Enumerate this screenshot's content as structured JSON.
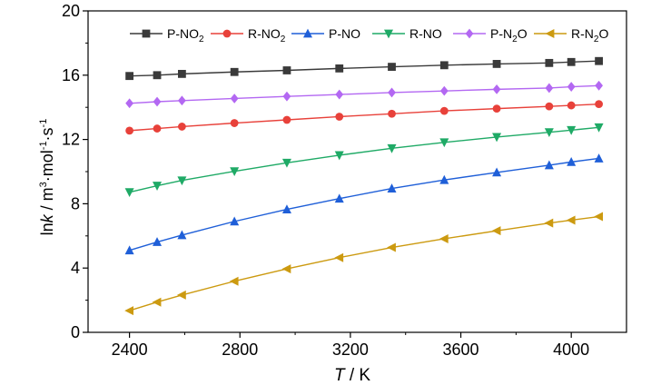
{
  "chart_data": {
    "type": "line",
    "xlabel": {
      "italic": "T",
      "rest": " / K"
    },
    "ylabel": {
      "prefix": "ln",
      "italic": "k",
      "unit": " / m3·mol-1·s-1"
    },
    "xlim": [
      2250,
      4200
    ],
    "ylim": [
      0,
      20
    ],
    "xticks": [
      2400,
      2800,
      3200,
      3600,
      4000
    ],
    "yticks": [
      0,
      4,
      8,
      12,
      16,
      20
    ],
    "x": [
      2400,
      2500,
      2590,
      2780,
      2970,
      3160,
      3350,
      3540,
      3730,
      3920,
      4000,
      4100
    ],
    "grid": false,
    "legend_position": "top",
    "series": [
      {
        "name": "P-NO2",
        "base": "P-NO",
        "sub": "2",
        "color": "#3a3a3a",
        "marker": "square",
        "values": [
          15.95,
          16.0,
          16.08,
          16.2,
          16.3,
          16.42,
          16.52,
          16.62,
          16.7,
          16.76,
          16.82,
          16.88
        ]
      },
      {
        "name": "R-NO2",
        "base": "R-NO",
        "sub": "2",
        "color": "#e8413a",
        "marker": "circle",
        "values": [
          12.55,
          12.68,
          12.8,
          13.02,
          13.22,
          13.42,
          13.6,
          13.78,
          13.92,
          14.06,
          14.12,
          14.2
        ]
      },
      {
        "name": "P-NO",
        "base": "P-NO",
        "sub": "",
        "color": "#1f5fd8",
        "marker": "triangle-up",
        "values": [
          5.1,
          5.62,
          6.05,
          6.9,
          7.65,
          8.32,
          8.95,
          9.48,
          9.95,
          10.4,
          10.6,
          10.82
        ]
      },
      {
        "name": "R-NO",
        "base": "R-NO",
        "sub": "",
        "color": "#1faa66",
        "marker": "triangle-down",
        "values": [
          8.72,
          9.12,
          9.45,
          10.02,
          10.55,
          11.02,
          11.45,
          11.82,
          12.15,
          12.45,
          12.58,
          12.75
        ]
      },
      {
        "name": "P-N2O",
        "base": "P-N",
        "sub": "2",
        "tail": "O",
        "color": "#b368f2",
        "marker": "diamond",
        "values": [
          14.25,
          14.35,
          14.42,
          14.55,
          14.68,
          14.8,
          14.92,
          15.02,
          15.12,
          15.2,
          15.28,
          15.35
        ]
      },
      {
        "name": "R-N2O",
        "base": "R-N",
        "sub": "2",
        "tail": "O",
        "color": "#cc9a10",
        "marker": "triangle-left",
        "values": [
          1.35,
          1.88,
          2.32,
          3.18,
          3.95,
          4.65,
          5.28,
          5.82,
          6.32,
          6.8,
          6.98,
          7.2
        ]
      }
    ]
  }
}
